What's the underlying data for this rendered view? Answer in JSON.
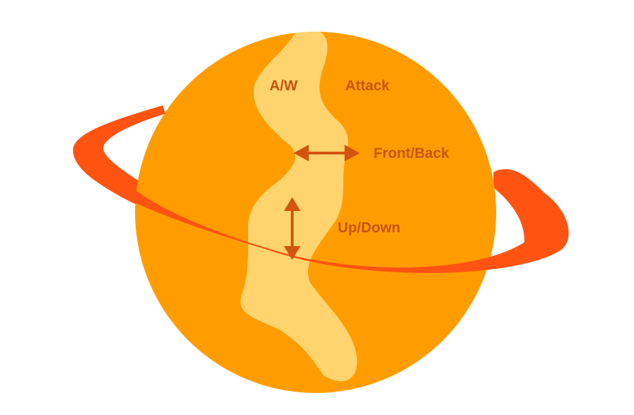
{
  "labels": {
    "aw": "A/W",
    "attack": "Attack",
    "front_back": "Front/Back",
    "up_down": "Up/Down"
  },
  "colors": {
    "planet": "#ff9d00",
    "band": "#ffd46e",
    "ring": "#ff5312",
    "arrow": "#d2540e",
    "text": "#c85410"
  }
}
